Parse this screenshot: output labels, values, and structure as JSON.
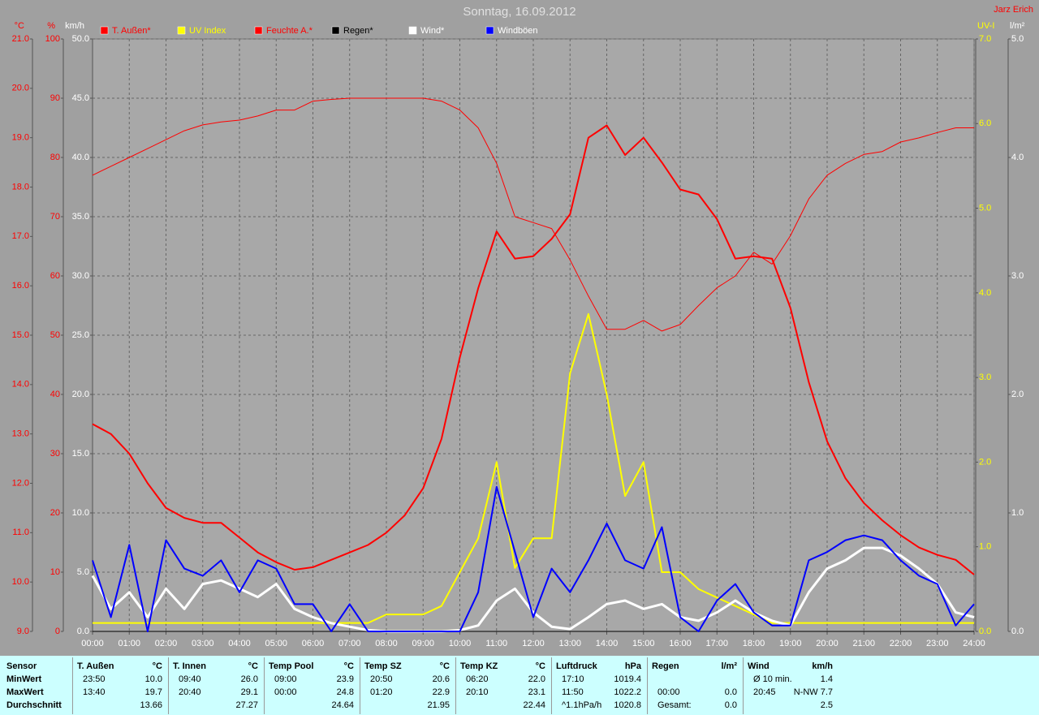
{
  "chart_data": {
    "type": "line",
    "title": "Sonntag, 16.09.2012",
    "author": "Jarz Erich",
    "grid": true,
    "x": [
      0,
      0.5,
      1,
      1.5,
      2,
      2.5,
      3,
      3.5,
      4,
      4.5,
      5,
      5.5,
      6,
      6.5,
      7,
      7.5,
      8,
      8.5,
      9,
      9.5,
      10,
      10.5,
      11,
      11.5,
      12,
      12.5,
      13,
      13.5,
      14,
      14.5,
      15,
      15.5,
      16,
      16.5,
      17,
      17.5,
      18,
      18.5,
      19,
      19.5,
      20,
      20.5,
      21,
      21.5,
      22,
      22.5,
      23,
      23.5,
      24
    ],
    "xlim": [
      0,
      24
    ],
    "xticks": [
      {
        "value": 0,
        "label": "00:00"
      },
      {
        "value": 1,
        "label": "01:00"
      },
      {
        "value": 2,
        "label": "02:00"
      },
      {
        "value": 3,
        "label": "03:00"
      },
      {
        "value": 4,
        "label": "04:00"
      },
      {
        "value": 5,
        "label": "05:00"
      },
      {
        "value": 6,
        "label": "06:00"
      },
      {
        "value": 7,
        "label": "07:00"
      },
      {
        "value": 8,
        "label": "08:00"
      },
      {
        "value": 9,
        "label": "09:00"
      },
      {
        "value": 10,
        "label": "10:00"
      },
      {
        "value": 11,
        "label": "11:00"
      },
      {
        "value": 12,
        "label": "12:00"
      },
      {
        "value": 13,
        "label": "13:00"
      },
      {
        "value": 14,
        "label": "14:00"
      },
      {
        "value": 15,
        "label": "15:00"
      },
      {
        "value": 16,
        "label": "16:00"
      },
      {
        "value": 17,
        "label": "17:00"
      },
      {
        "value": 18,
        "label": "18:00"
      },
      {
        "value": 19,
        "label": "19:00"
      },
      {
        "value": 20,
        "label": "20:00"
      },
      {
        "value": 21,
        "label": "21:00"
      },
      {
        "value": 22,
        "label": "22:00"
      },
      {
        "value": 23,
        "label": "23:00"
      },
      {
        "value": 24,
        "label": "24:00"
      }
    ],
    "axes": [
      {
        "label": "°C",
        "side": "left",
        "color": "#ff0000",
        "lim": [
          9,
          21
        ],
        "ticks": [
          {
            "value": 9,
            "label": "9.0"
          },
          {
            "value": 10,
            "label": "10.0"
          },
          {
            "value": 11,
            "label": "11.0"
          },
          {
            "value": 12,
            "label": "12.0"
          },
          {
            "value": 13,
            "label": "13.0"
          },
          {
            "value": 14,
            "label": "14.0"
          },
          {
            "value": 15,
            "label": "15.0"
          },
          {
            "value": 16,
            "label": "16.0"
          },
          {
            "value": 17,
            "label": "17.0"
          },
          {
            "value": 18,
            "label": "18.0"
          },
          {
            "value": 19,
            "label": "19.0"
          },
          {
            "value": 20,
            "label": "20.0"
          },
          {
            "value": 21,
            "label": "21.0"
          }
        ]
      },
      {
        "label": "%",
        "side": "left",
        "color": "#ff0000",
        "lim": [
          0,
          100
        ],
        "ticks": [
          0,
          10,
          20,
          30,
          40,
          50,
          60,
          70,
          80,
          90,
          100
        ]
      },
      {
        "label": "km/h",
        "side": "left",
        "color": "#ffffff",
        "grid": true,
        "lim": [
          0,
          50
        ],
        "ticks": [
          {
            "value": 0,
            "label": "0.0"
          },
          {
            "value": 5,
            "label": "5.0"
          },
          {
            "value": 10,
            "label": "10.0"
          },
          {
            "value": 15,
            "label": "15.0"
          },
          {
            "value": 20,
            "label": "20.0"
          },
          {
            "value": 25,
            "label": "25.0"
          },
          {
            "value": 30,
            "label": "30.0"
          },
          {
            "value": 35,
            "label": "35.0"
          },
          {
            "value": 40,
            "label": "40.0"
          },
          {
            "value": 45,
            "label": "45.0"
          },
          {
            "value": 50,
            "label": "50.0"
          }
        ]
      },
      {
        "label": "UV-I",
        "side": "right",
        "color": "#ffff00",
        "lim": [
          0,
          7
        ],
        "ticks": [
          {
            "value": 0,
            "label": "0.0"
          },
          {
            "value": 1,
            "label": "1.0"
          },
          {
            "value": 2,
            "label": "2.0"
          },
          {
            "value": 3,
            "label": "3.0"
          },
          {
            "value": 4,
            "label": "4.0"
          },
          {
            "value": 5,
            "label": "5.0"
          },
          {
            "value": 6,
            "label": "6.0"
          },
          {
            "value": 7,
            "label": "7.0"
          }
        ]
      },
      {
        "label": "l/m²",
        "side": "right",
        "color": "#ffffff",
        "lim": [
          0,
          5
        ],
        "ticks": [
          {
            "value": 0,
            "label": "0.0"
          },
          {
            "value": 1,
            "label": "1.0"
          },
          {
            "value": 2,
            "label": "2.0"
          },
          {
            "value": 3,
            "label": "3.0"
          },
          {
            "value": 4,
            "label": "4.0"
          },
          {
            "value": 5,
            "label": "5.0"
          }
        ]
      }
    ],
    "series": [
      {
        "name": "T. Außen*",
        "color": "#ff0000",
        "axis": 0,
        "width": 2,
        "values": [
          13.2,
          13.0,
          12.6,
          12.0,
          11.5,
          11.3,
          11.2,
          11.2,
          10.9,
          10.6,
          10.4,
          10.25,
          10.3,
          10.45,
          10.6,
          10.75,
          11.0,
          11.35,
          11.9,
          12.9,
          14.55,
          15.95,
          17.1,
          16.55,
          16.6,
          16.95,
          17.45,
          19.0,
          19.25,
          18.65,
          19.0,
          18.5,
          17.95,
          17.85,
          17.35,
          16.55,
          16.6,
          16.55,
          15.55,
          14.05,
          12.85,
          12.1,
          11.6,
          11.25,
          10.95,
          10.7,
          10.55,
          10.45,
          10.15
        ]
      },
      {
        "name": "UV Index",
        "color": "#ffff00",
        "axis": 3,
        "width": 2,
        "values": [
          0.1,
          0.1,
          0.1,
          0.1,
          0.1,
          0.1,
          0.1,
          0.1,
          0.1,
          0.1,
          0.1,
          0.1,
          0.1,
          0.1,
          0.1,
          0.1,
          0.2,
          0.2,
          0.2,
          0.3,
          0.7,
          1.1,
          2.0,
          0.75,
          1.1,
          1.1,
          3.05,
          3.75,
          2.8,
          1.6,
          2.0,
          0.7,
          0.7,
          0.5,
          0.4,
          0.3,
          0.2,
          0.1,
          0.1,
          0.1,
          0.1,
          0.1,
          0.1,
          0.1,
          0.1,
          0.1,
          0.1,
          0.1,
          0.1
        ]
      },
      {
        "name": "Feuchte A.*",
        "color": "#ff0000",
        "axis": 1,
        "width": 1,
        "values": [
          77,
          78.5,
          80,
          81.5,
          83,
          84.5,
          85.5,
          86,
          86.3,
          87,
          88,
          88,
          89.5,
          89.8,
          90,
          90,
          90,
          90,
          90,
          89.5,
          88,
          85,
          79,
          70,
          69,
          68,
          62.7,
          56.6,
          51,
          51,
          52.5,
          50.7,
          51.8,
          55,
          58,
          60,
          64,
          62,
          66.8,
          73,
          77,
          79,
          80.5,
          81,
          82.6,
          83.3,
          84.2,
          85,
          85
        ]
      },
      {
        "name": "Regen*",
        "color": "#000000",
        "axis": 4,
        "width": 1,
        "values": [
          0,
          0,
          0,
          0,
          0,
          0,
          0,
          0,
          0,
          0,
          0,
          0,
          0,
          0,
          0,
          0,
          0,
          0,
          0,
          0,
          0,
          0,
          0,
          0,
          0,
          0,
          0,
          0,
          0,
          0,
          0,
          0,
          0,
          0,
          0,
          0,
          0,
          0,
          0,
          0,
          0,
          0,
          0,
          0,
          0,
          0,
          0,
          0,
          0
        ]
      },
      {
        "name": "Wind*",
        "color": "#ffffff",
        "axis": 2,
        "width": 3,
        "values": [
          4.7,
          1.9,
          3.3,
          1.2,
          3.6,
          1.9,
          4.0,
          4.3,
          3.6,
          2.9,
          4.0,
          1.9,
          1.2,
          0.7,
          0.4,
          0.1,
          0,
          0,
          0,
          0,
          0.1,
          0.5,
          2.6,
          3.6,
          1.6,
          0.4,
          0.2,
          1.2,
          2.3,
          2.6,
          1.9,
          2.3,
          1.2,
          0.9,
          1.6,
          2.6,
          1.6,
          0.9,
          0.5,
          3.3,
          5.3,
          6.0,
          7.05,
          7.05,
          6.4,
          5.3,
          4.0,
          1.6,
          1.2
        ]
      },
      {
        "name": "Windböen",
        "color": "#0000ff",
        "axis": 2,
        "width": 2,
        "values": [
          6.0,
          1.2,
          7.3,
          0,
          7.7,
          5.3,
          4.7,
          6.0,
          3.3,
          6.0,
          5.3,
          2.3,
          2.3,
          0,
          2.3,
          0,
          0,
          0,
          0,
          0,
          0,
          3.3,
          12.2,
          6.7,
          1.2,
          5.3,
          3.3,
          6.0,
          9.1,
          6.0,
          5.3,
          8.8,
          1.2,
          0,
          2.6,
          4.0,
          1.6,
          0.5,
          0.5,
          6.0,
          6.7,
          7.7,
          8.1,
          7.7,
          6.0,
          4.7,
          4.0,
          0.5,
          2.3
        ]
      }
    ]
  },
  "table": {
    "header": "Sensor",
    "row_labels": [
      "MinWert",
      "MaxWert",
      "Durchschnitt"
    ],
    "columns": [
      {
        "name": "T. Außen",
        "unit": "°C",
        "rows": [
          [
            "23:50",
            "10.0"
          ],
          [
            "13:40",
            "19.7"
          ],
          [
            null,
            "13.66"
          ]
        ]
      },
      {
        "name": "T. Innen",
        "unit": "°C",
        "rows": [
          [
            "09:40",
            "26.0"
          ],
          [
            "20:40",
            "29.1"
          ],
          [
            null,
            "27.27"
          ]
        ]
      },
      {
        "name": "Temp Pool",
        "unit": "°C",
        "rows": [
          [
            "09:00",
            "23.9"
          ],
          [
            "00:00",
            "24.8"
          ],
          [
            null,
            "24.64"
          ]
        ]
      },
      {
        "name": "Temp SZ",
        "unit": "°C",
        "rows": [
          [
            "20:50",
            "20.6"
          ],
          [
            "01:20",
            "22.9"
          ],
          [
            null,
            "21.95"
          ]
        ]
      },
      {
        "name": "Temp KZ",
        "unit": "°C",
        "rows": [
          [
            "06:20",
            "22.0"
          ],
          [
            "20:10",
            "23.1"
          ],
          [
            null,
            "22.44"
          ]
        ]
      },
      {
        "name": "Luftdruck",
        "unit": "hPa",
        "rows": [
          [
            "17:10",
            "1019.4"
          ],
          [
            "11:50",
            "1022.2"
          ],
          [
            "^1.1hPa/h",
            "1020.8"
          ]
        ]
      },
      {
        "name": "Regen",
        "unit": "l/m²",
        "rows": [
          [
            null,
            null
          ],
          [
            "00:00",
            "0.0"
          ],
          [
            "Gesamt:",
            "0.0"
          ]
        ]
      },
      {
        "name": "Wind",
        "unit": "km/h",
        "rows": [
          [
            "Ø 10 min.",
            "1.4"
          ],
          [
            "20:45",
            "N-NW 7.7"
          ],
          [
            null,
            "2.5"
          ]
        ]
      }
    ]
  }
}
